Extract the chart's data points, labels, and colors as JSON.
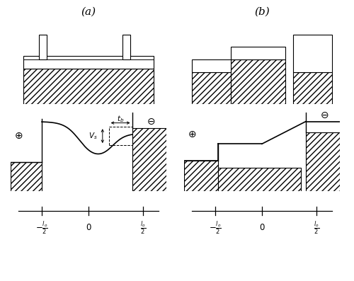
{
  "fig_width": 5.0,
  "fig_height": 3.97,
  "bg_color": "#ffffff",
  "label_a": "(a)",
  "label_b": "(b)",
  "label_plus": "$\\oplus$",
  "label_minus": "$\\ominus$",
  "xlabel_left": "$-\\frac{l_o}{2}$",
  "xlabel_zero": "$0$",
  "xlabel_right": "$\\frac{l_o}{2}$",
  "annotation_tb": "$t_b$",
  "annotation_vs": "$V_s$"
}
